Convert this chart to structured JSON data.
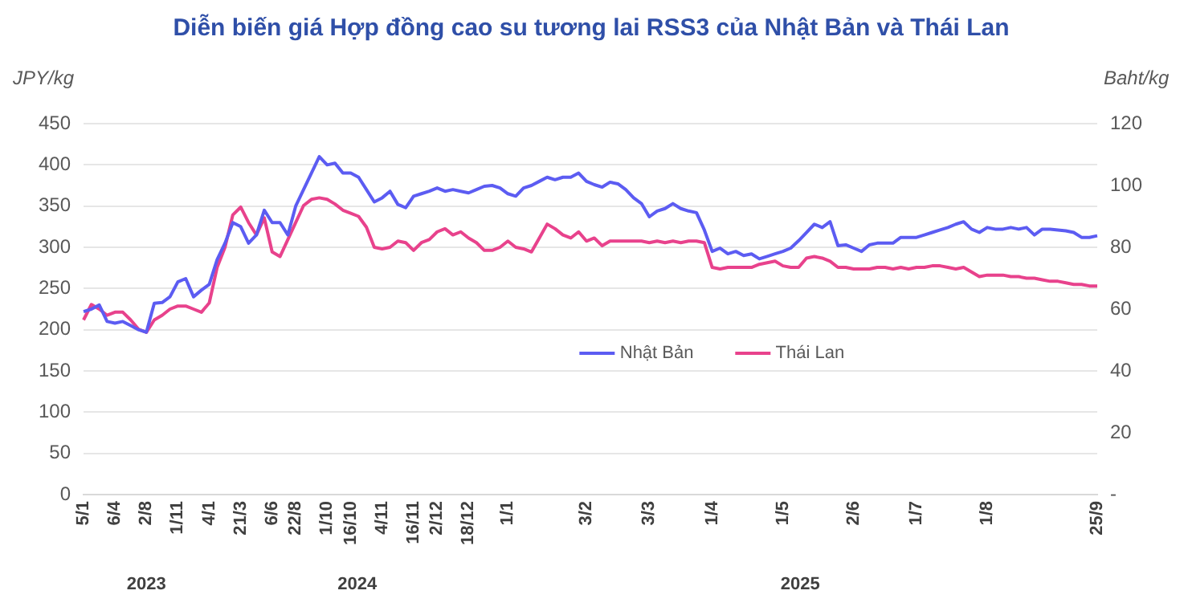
{
  "chart_data": {
    "type": "line",
    "title": "Diễn biến giá Hợp đồng cao su tương lai RSS3 của Nhật Bản và Thái Lan",
    "ylabel": "JPY/kg",
    "y2label": "Baht/kg",
    "categories": [
      "5/1",
      null,
      null,
      null,
      "6/4",
      null,
      null,
      null,
      "2/8",
      null,
      null,
      null,
      "1/11",
      null,
      null,
      null,
      "4/1",
      null,
      null,
      null,
      "21/3",
      null,
      null,
      null,
      "6/6",
      null,
      null,
      "22/8",
      null,
      null,
      null,
      "1/10",
      null,
      null,
      "16/10",
      null,
      null,
      null,
      "4/11",
      null,
      null,
      null,
      "16/11",
      null,
      null,
      "2/12",
      null,
      null,
      null,
      "18/12",
      null,
      null,
      null,
      null,
      "1/1",
      null,
      null,
      null,
      null,
      null,
      null,
      null,
      null,
      null,
      "3/2",
      null,
      null,
      null,
      null,
      null,
      null,
      null,
      "3/3",
      null,
      null,
      null,
      null,
      null,
      null,
      null,
      "1/4",
      null,
      null,
      null,
      null,
      null,
      null,
      null,
      null,
      "1/5",
      null,
      null,
      null,
      null,
      null,
      null,
      null,
      null,
      "2/6",
      null,
      null,
      null,
      null,
      null,
      null,
      null,
      "1/7",
      null,
      null,
      null,
      null,
      null,
      null,
      null,
      null,
      "1/8",
      null,
      null,
      null,
      null,
      null,
      null,
      null,
      null,
      null,
      null,
      null,
      null,
      null,
      "25/9"
    ],
    "series": [
      {
        "name": "Nhật Bản",
        "color": "#5c5cf2",
        "values": [
          222,
          225,
          230,
          210,
          208,
          210,
          205,
          200,
          197,
          232,
          233,
          240,
          258,
          262,
          240,
          248,
          255,
          285,
          305,
          330,
          325,
          305,
          315,
          345,
          330,
          330,
          315,
          350,
          370,
          390,
          410,
          400,
          402,
          390,
          390,
          385,
          370,
          355,
          360,
          368,
          352,
          348,
          362,
          365,
          368,
          372,
          368,
          370,
          368,
          366,
          370,
          374,
          375,
          372,
          365,
          362,
          372,
          375,
          380,
          385,
          382,
          385,
          385,
          390,
          380,
          376,
          373,
          379,
          377,
          370,
          360,
          353,
          337,
          344,
          347,
          353,
          347,
          344,
          342,
          321,
          295,
          299,
          292,
          295,
          290,
          292,
          286,
          289,
          292,
          295,
          299,
          308,
          318,
          328,
          324,
          331,
          302,
          303,
          299,
          295,
          303,
          305,
          305,
          305,
          312,
          312,
          312,
          315,
          318,
          321,
          324,
          328,
          331,
          322,
          318,
          324,
          322,
          322,
          324,
          322,
          324,
          315,
          322,
          322,
          321,
          320,
          318,
          312,
          312,
          314
        ]
      },
      {
        "name": "Thái Lan",
        "color": "#e8428c",
        "axis": "y2",
        "values": [
          56.5,
          61.5,
          60,
          58,
          59,
          59,
          56.5,
          53.5,
          52.5,
          56.5,
          58,
          60,
          61,
          61,
          60,
          59,
          62,
          73.5,
          80,
          90.5,
          93,
          88,
          84,
          89.5,
          78.5,
          77,
          82.5,
          88,
          93.5,
          95.5,
          96,
          95.5,
          94,
          92,
          91,
          90,
          86.5,
          80,
          79.5,
          80,
          82,
          81.5,
          79,
          81.5,
          82.5,
          85,
          86,
          84,
          85,
          83,
          81.5,
          79,
          79,
          80,
          82,
          80,
          79.5,
          78.5,
          83,
          87.5,
          86,
          84,
          83,
          85,
          82,
          83,
          80.5,
          82,
          82,
          82,
          82,
          82,
          81.5,
          82,
          81.5,
          82,
          81.5,
          82,
          82,
          81.5,
          73.5,
          73,
          73.5,
          73.5,
          73.5,
          73.5,
          74.5,
          75,
          75.5,
          74,
          73.5,
          73.5,
          76.5,
          77,
          76.5,
          75.5,
          73.5,
          73.5,
          73,
          73,
          73,
          73.5,
          73.5,
          73,
          73.5,
          73,
          73.5,
          73.5,
          74,
          74,
          73.5,
          73,
          73.5,
          72,
          70.5,
          71,
          71,
          71,
          70.5,
          70.5,
          70,
          70,
          69.5,
          69,
          69,
          68.5,
          68,
          68,
          67.5,
          67.5
        ]
      }
    ],
    "ylim": [
      0,
      450
    ],
    "yticks": [
      0,
      50,
      100,
      150,
      200,
      250,
      300,
      350,
      400,
      450
    ],
    "y2lim": [
      0,
      120
    ],
    "y2ticks": [
      {
        "value": 0,
        "label": "-"
      },
      20,
      40,
      60,
      80,
      100,
      120
    ],
    "grid": "y",
    "legend": "center",
    "annotations": [
      "2023",
      "2024",
      "2025"
    ]
  }
}
